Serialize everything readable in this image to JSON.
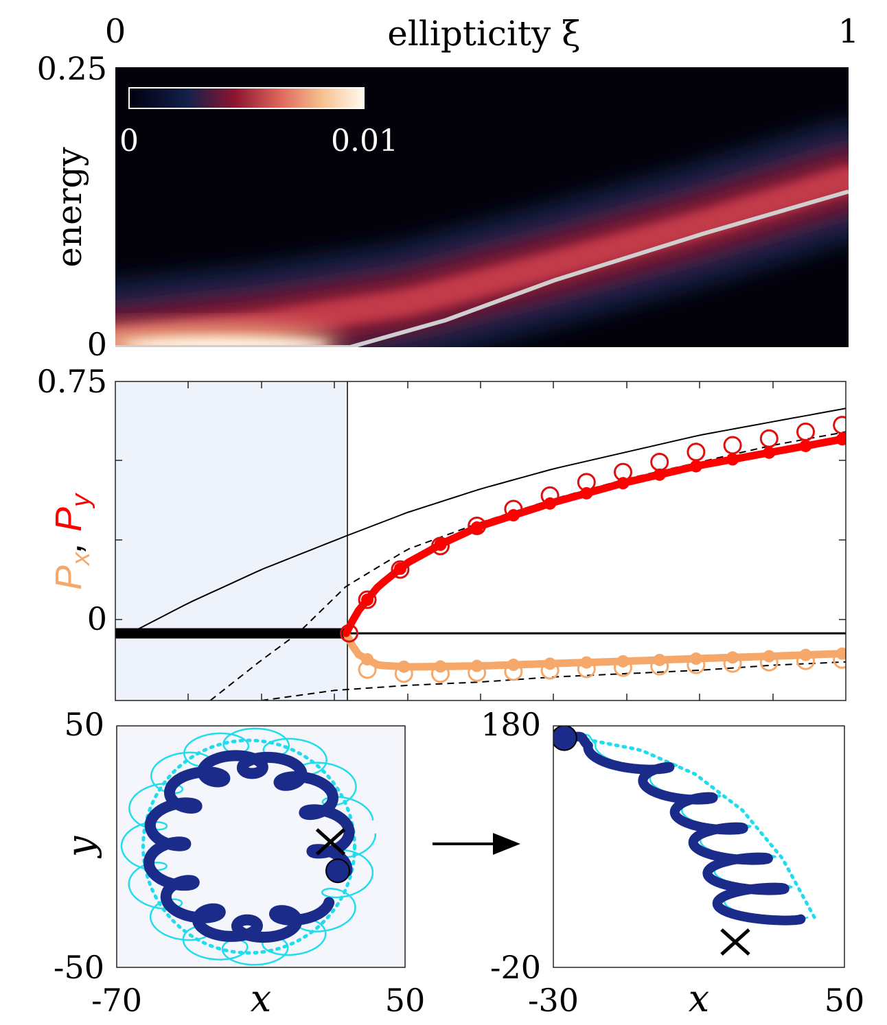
{
  "chart_data": [
    {
      "type": "heatmap",
      "panel": "top",
      "title": "ellipticity ξ",
      "xlabel": "ellipticity ξ",
      "ylabel": "energy",
      "xlim": [
        0,
        1
      ],
      "ylim": [
        0,
        0.25
      ],
      "x_tick_labels": [
        "0",
        "1"
      ],
      "y_tick_labels": [
        "0.25",
        "0"
      ],
      "colorbar": {
        "min": 0,
        "max": 0.01,
        "min_label": "0",
        "max_label": "0.01",
        "placement": "top-left",
        "colormap": [
          "#000010",
          "#13204a",
          "#8c1530",
          "#e06a5c",
          "#f5c090",
          "#fffaf0"
        ]
      },
      "ridge": {
        "description": "bright band center",
        "x": [
          0,
          0.2,
          0.4,
          0.6,
          0.8,
          1.0
        ],
        "y": [
          0.006,
          0.02,
          0.04,
          0.074,
          0.11,
          0.15
        ]
      },
      "ridge_color": "#d0d0d0",
      "gray_line": {
        "x": [
          0,
          0.32,
          0.45,
          0.6,
          0.8,
          1.0
        ],
        "y": [
          0,
          0,
          0.024,
          0.06,
          0.101,
          0.139
        ]
      }
    },
    {
      "type": "line",
      "panel": "middle",
      "ylabel_parts": [
        "P",
        "x",
        ", ",
        "P",
        "y"
      ],
      "ylabel_colors": {
        "Px": "#f5a86a",
        "Py": "#ff0000"
      },
      "xlim": [
        0,
        1
      ],
      "ylim": [
        -0.2,
        0.75
      ],
      "y_tick_labels": [
        "0.75",
        "0"
      ],
      "shaded_region": {
        "x": [
          0,
          0.316
        ],
        "color": "#eef3fb"
      },
      "series": [
        {
          "name": "P_y (solid, bold)",
          "color": "#ff0000",
          "x": [
            0.316,
            0.33,
            0.36,
            0.4,
            0.45,
            0.5,
            0.6,
            0.7,
            0.8,
            0.9,
            1.0
          ],
          "y": [
            0,
            0.06,
            0.14,
            0.21,
            0.27,
            0.32,
            0.39,
            0.45,
            0.5,
            0.54,
            0.58
          ]
        },
        {
          "name": "P_y markers (circles)",
          "color": "#dd1010",
          "x": [
            0.32,
            0.345,
            0.39,
            0.445,
            0.495,
            0.545,
            0.595,
            0.645,
            0.695,
            0.745,
            0.795,
            0.845,
            0.895,
            0.945,
            0.995
          ],
          "y": [
            0.0,
            0.1,
            0.19,
            0.26,
            0.32,
            0.37,
            0.41,
            0.45,
            0.48,
            0.51,
            0.54,
            0.56,
            0.58,
            0.6,
            0.62
          ]
        },
        {
          "name": "P_x (solid, bold)",
          "color": "#f5a86a",
          "x": [
            0.316,
            0.33,
            0.36,
            0.4,
            0.5,
            0.6,
            0.7,
            0.8,
            0.9,
            1.0
          ],
          "y": [
            0,
            -0.06,
            -0.095,
            -0.1,
            -0.097,
            -0.09,
            -0.083,
            -0.075,
            -0.068,
            -0.06
          ]
        },
        {
          "name": "P_x markers (circles)",
          "color": "#f5a86a",
          "x": [
            0.345,
            0.395,
            0.445,
            0.495,
            0.545,
            0.595,
            0.645,
            0.695,
            0.745,
            0.795,
            0.845,
            0.895,
            0.945,
            0.995
          ],
          "y": [
            -0.108,
            -0.12,
            -0.12,
            -0.117,
            -0.114,
            -0.11,
            -0.106,
            -0.102,
            -0.098,
            -0.094,
            -0.09,
            -0.086,
            -0.082,
            -0.078
          ]
        },
        {
          "name": "reference solid black",
          "color": "#000000",
          "x": [
            0.02,
            0.1,
            0.2,
            0.316,
            0.4,
            0.5,
            0.6,
            0.7,
            0.8,
            0.9,
            1.0
          ],
          "y": [
            0,
            0.09,
            0.19,
            0.29,
            0.36,
            0.43,
            0.49,
            0.54,
            0.59,
            0.63,
            0.67
          ]
        },
        {
          "name": "reference dashed black upper",
          "color": "#000000",
          "x": [
            0.13,
            0.2,
            0.25,
            0.316,
            0.4,
            0.5,
            0.6,
            0.7,
            0.8,
            0.9,
            1.0
          ],
          "y": [
            -0.2,
            -0.08,
            0.0,
            0.14,
            0.25,
            0.33,
            0.4,
            0.46,
            0.51,
            0.56,
            0.6
          ]
        },
        {
          "name": "reference dashed black lower",
          "color": "#000000",
          "x": [
            0.2,
            0.3,
            0.4,
            0.5,
            0.6,
            0.7,
            0.8,
            0.9,
            1.0
          ],
          "y": [
            -0.2,
            -0.17,
            -0.155,
            -0.145,
            -0.13,
            -0.12,
            -0.11,
            -0.095,
            -0.085
          ]
        },
        {
          "name": "zero line",
          "color": "#000000",
          "x": [
            0,
            1
          ],
          "y": [
            0,
            0
          ]
        }
      ]
    },
    {
      "type": "line",
      "panel": "bottom-left",
      "xlabel": "x",
      "ylabel": "y",
      "xlim": [
        -70,
        50
      ],
      "ylim": [
        -50,
        50
      ],
      "x_tick_labels": [
        "-70",
        "50"
      ],
      "y_tick_labels": [
        "50",
        "-50"
      ],
      "background": "#f4f6fb",
      "colors": {
        "thick": "#1a2b8a",
        "thin": "#22dcee",
        "dotted": "#22dcee"
      },
      "orbit_center": [
        -15,
        0
      ],
      "orbit_radius": [
        44,
        44
      ],
      "start_marker": {
        "shape": "circle",
        "x": 22,
        "y": -10
      },
      "end_marker": {
        "shape": "x",
        "x": 19,
        "y": 2
      }
    },
    {
      "type": "line",
      "panel": "bottom-right",
      "xlabel": "x",
      "xlim": [
        -30,
        50
      ],
      "ylim": [
        -20,
        180
      ],
      "x_tick_labels": [
        "-30",
        "50"
      ],
      "y_tick_labels": [
        "180",
        "-20"
      ],
      "colors": {
        "thick": "#1a2b8a",
        "thin": "#22dcee",
        "dotted": "#22dcee"
      },
      "path_center": {
        "x": [
          -27,
          -10,
          5,
          18,
          29,
          38
        ],
        "y": [
          170,
          160,
          140,
          110,
          70,
          20
        ]
      },
      "start_marker": {
        "shape": "circle",
        "x": -27,
        "y": 170
      },
      "end_marker": {
        "shape": "x",
        "x": 20,
        "y": 1
      }
    }
  ],
  "labels": {
    "top_title": "ellipticity ξ",
    "top_x_left": "0",
    "top_x_right": "1",
    "top_y_top": "0.25",
    "top_y_bottom": "0",
    "top_ylabel": "energy",
    "colorbar_min": "0",
    "colorbar_max": "0.01",
    "mid_y_top": "0.75",
    "mid_y_zero": "0",
    "bl_y_top": "50",
    "bl_y_bottom": "-50",
    "bl_x_left": "-70",
    "bl_x_right": "50",
    "bl_xlabel": "x",
    "bl_ylabel": "y",
    "br_y_top": "180",
    "br_y_bottom": "-20",
    "br_x_left": "-30",
    "br_x_right": "50",
    "br_xlabel": "x"
  }
}
